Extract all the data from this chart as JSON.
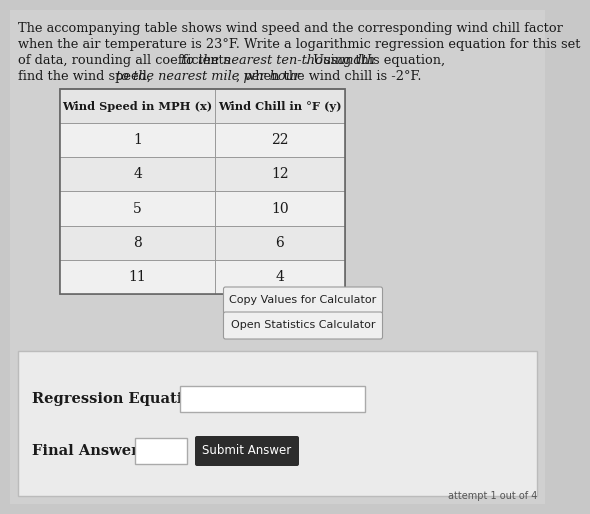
{
  "background_color": "#c8c8c8",
  "table_header": [
    "Wind Speed in MPH (x)",
    "Wind Chill in °F (y)"
  ],
  "table_data": [
    [
      1,
      22
    ],
    [
      4,
      12
    ],
    [
      5,
      10
    ],
    [
      8,
      6
    ],
    [
      11,
      4
    ]
  ],
  "button1": "Copy Values for Calculator",
  "button2": "Open Statistics Calculator",
  "label_regression": "Regression Equation:",
  "label_final": "Final Answer:",
  "button_submit": "Submit Answer",
  "attempt_text": "attempt 1 out of 4",
  "para_line0": "The accompanying table shows wind speed and the corresponding wind chill factor",
  "para_line1": "when the air temperature is 23°F. Write a logarithmic regression equation for this set",
  "para_line2_a": "of data, rounding all coefficients ",
  "para_line2_b": "to the nearest ten-thousandth",
  "para_line2_c": ". Using this equation,",
  "para_line3_a": "find the wind speed, ",
  "para_line3_b": "to the nearest mile per hour",
  "para_line3_c": ", when the wind chill is -2°F.",
  "text_color": "#1a1a1a",
  "table_bg": "#f5f5f5",
  "table_header_bg": "#e0e0e0",
  "row_alt_bg": "#e8e8e8",
  "table_border": "#888888",
  "button_bg": "#f0f0f0",
  "button_border": "#aaaaaa",
  "bottom_box_bg": "#f0f0f0",
  "bottom_box_border": "#cccccc",
  "input_bg": "#ffffff",
  "submit_bg": "#2a2a2a",
  "submit_text": "#ffffff"
}
